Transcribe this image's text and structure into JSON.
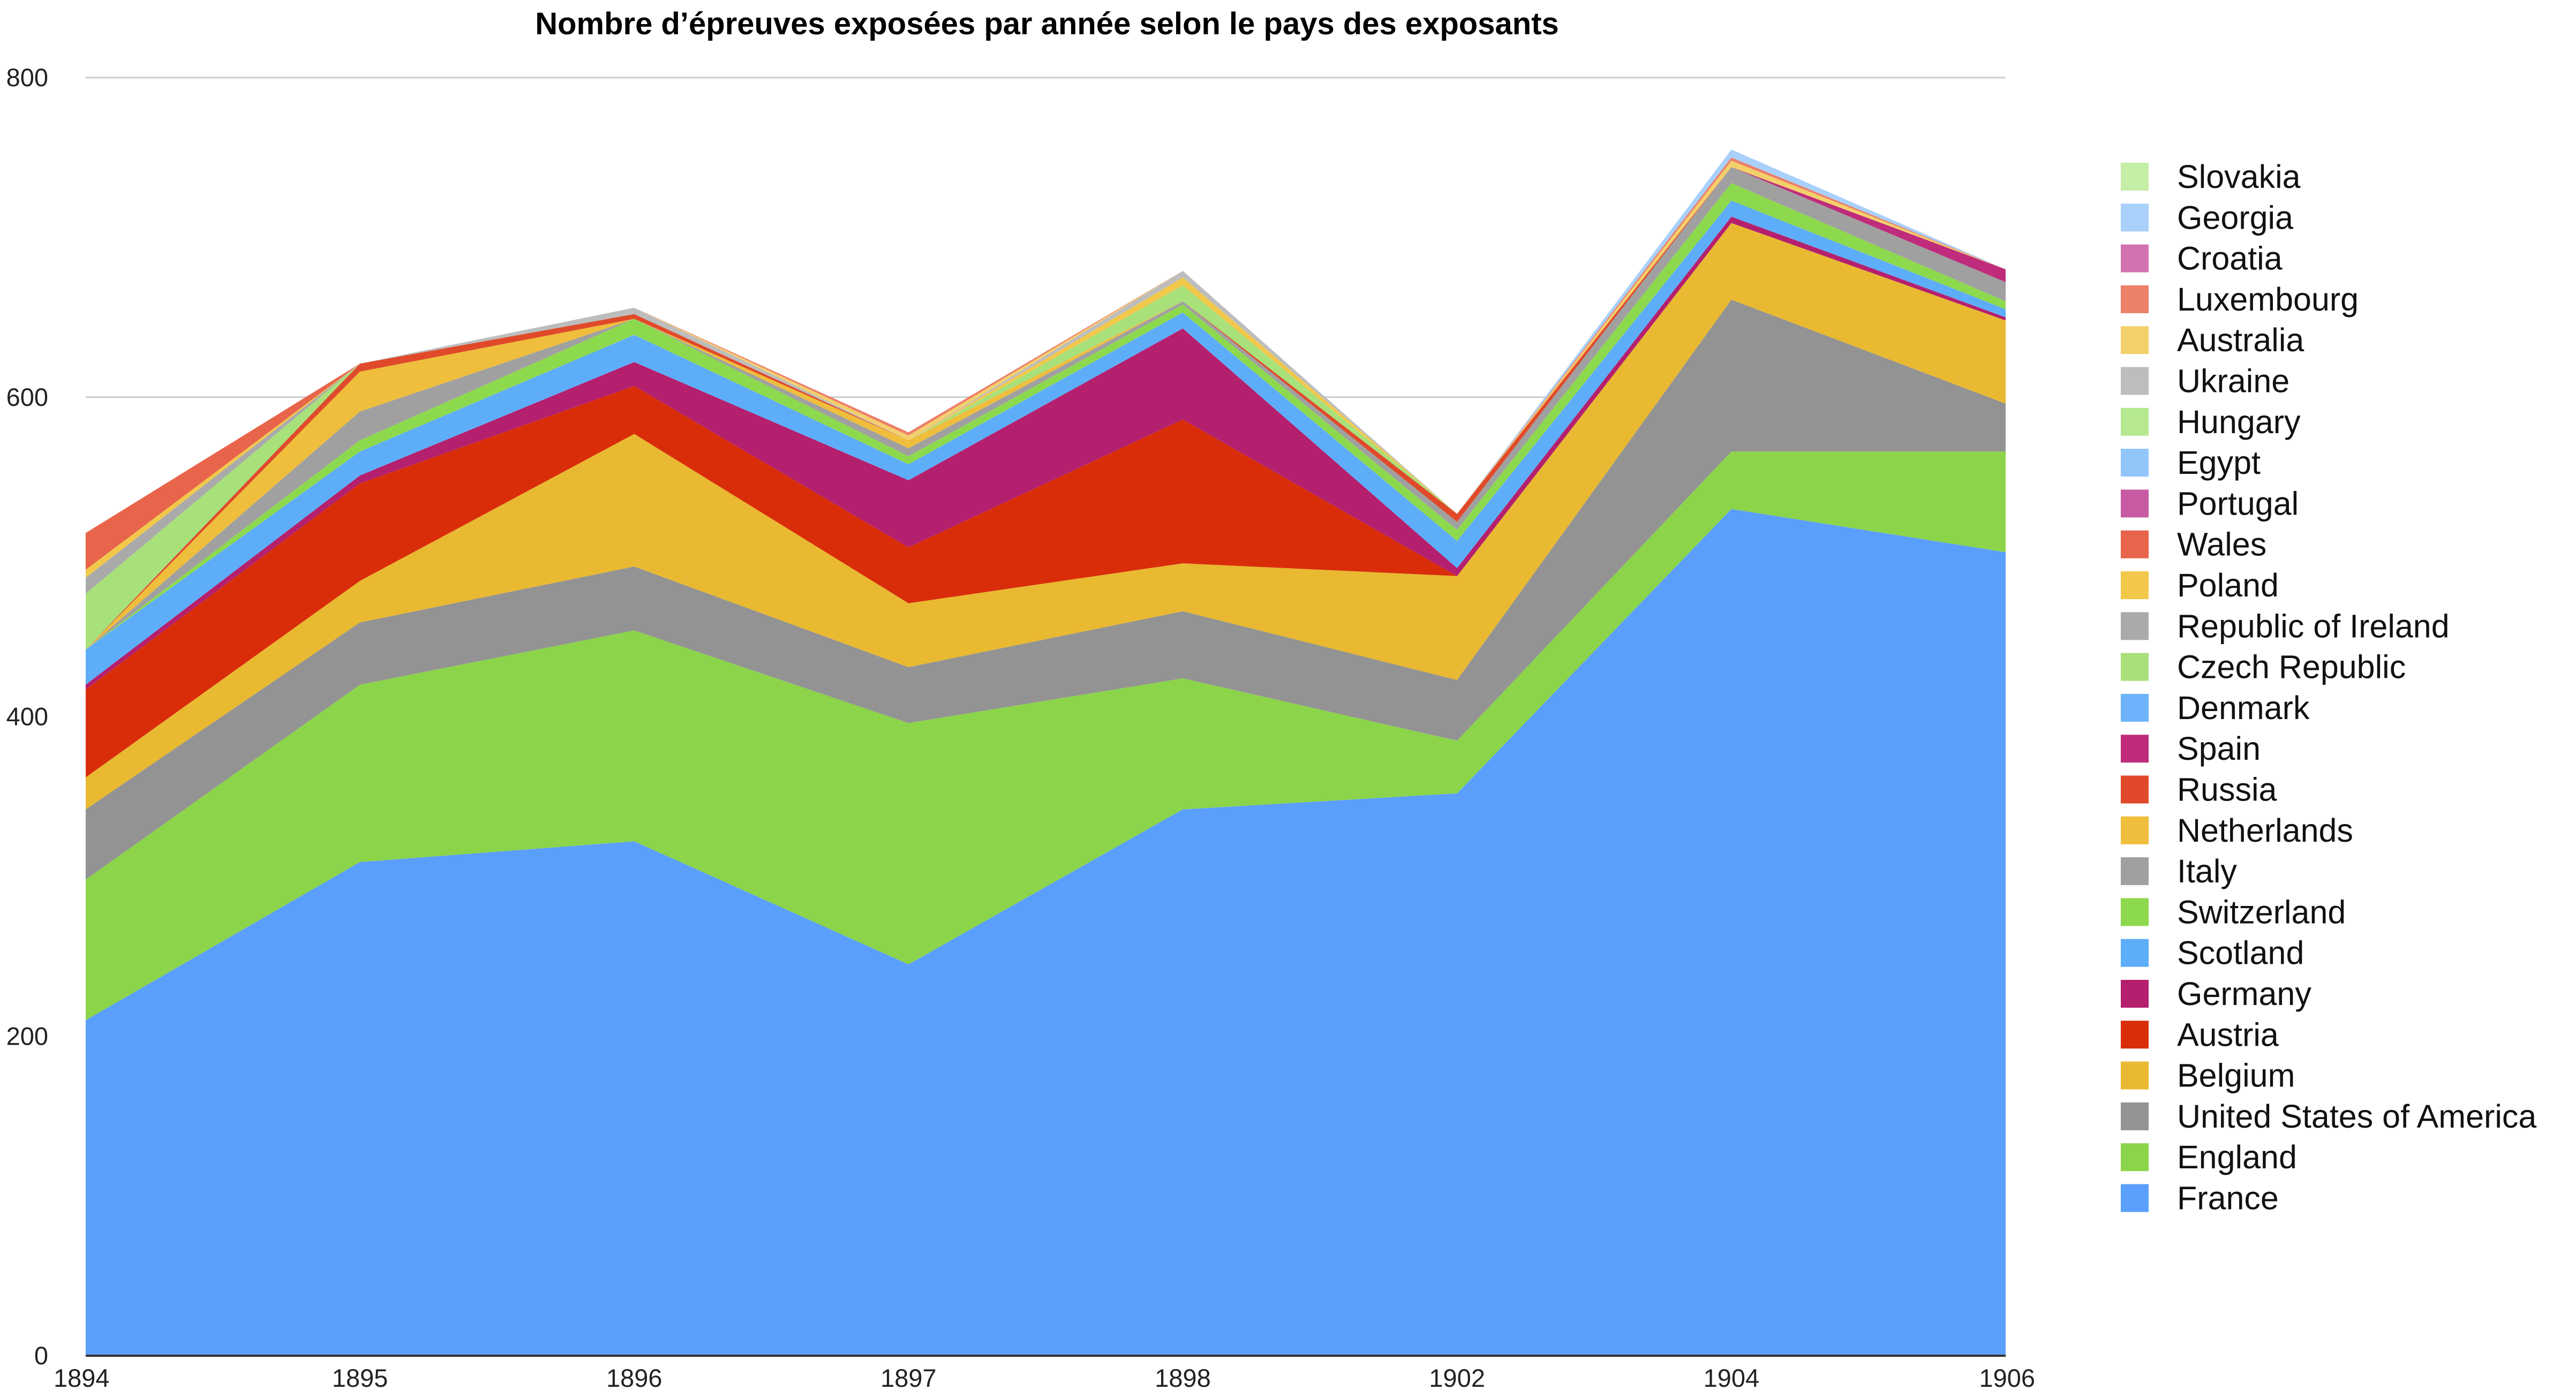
{
  "chart_data": {
    "type": "area",
    "stacked": true,
    "title": "Nombre d’épreuves exposées par année selon le pays des exposants",
    "xlabel": "",
    "ylabel": "",
    "categories": [
      "1894",
      "1895",
      "1896",
      "1897",
      "1898",
      "1902",
      "1904",
      "1906"
    ],
    "ylim": [
      0,
      800
    ],
    "yticks": [
      0,
      200,
      400,
      600,
      800
    ],
    "grid": true,
    "legend_position": "right",
    "series": [
      {
        "name": "France",
        "color": "#5B9FFC",
        "values": [
          210,
          309,
          322,
          245,
          342,
          352,
          530,
          503
        ]
      },
      {
        "name": "England",
        "color": "#8CD44A",
        "values": [
          88,
          111,
          132,
          151,
          82,
          33,
          36,
          63
        ]
      },
      {
        "name": "United States of America",
        "color": "#939393",
        "values": [
          44,
          39,
          40,
          35,
          42,
          38,
          95,
          30
        ]
      },
      {
        "name": "Belgium",
        "color": "#E9B931",
        "values": [
          20,
          26,
          83,
          40,
          30,
          65,
          48,
          52
        ]
      },
      {
        "name": "Austria",
        "color": "#D92D0A",
        "values": [
          55,
          61,
          30,
          35,
          90,
          0,
          0,
          0
        ]
      },
      {
        "name": "Germany",
        "color": "#B4206E",
        "values": [
          3,
          5,
          15,
          42,
          57,
          5,
          4,
          2
        ]
      },
      {
        "name": "Scotland",
        "color": "#5EADF9",
        "values": [
          22,
          15,
          17,
          10,
          10,
          17,
          10,
          5
        ]
      },
      {
        "name": "Switzerland",
        "color": "#8DD94E",
        "values": [
          0,
          7,
          10,
          5,
          5,
          7,
          11,
          5
        ]
      },
      {
        "name": "Italy",
        "color": "#A0A0A0",
        "values": [
          0,
          18,
          0,
          5,
          2,
          5,
          10,
          12
        ]
      },
      {
        "name": "Netherlands",
        "color": "#EFBE3C",
        "values": [
          0,
          25,
          0,
          5,
          0,
          0,
          0,
          0
        ]
      },
      {
        "name": "Russia",
        "color": "#E04A2A",
        "values": [
          0,
          5,
          3,
          0,
          0,
          5,
          0,
          0
        ]
      },
      {
        "name": "Spain",
        "color": "#BF2C7B",
        "values": [
          0,
          0,
          0,
          0,
          0,
          0,
          0,
          8
        ]
      },
      {
        "name": "Denmark",
        "color": "#6DB3FB",
        "values": [
          0,
          0,
          0,
          0,
          0,
          0,
          0,
          0
        ]
      },
      {
        "name": "Czech Republic",
        "color": "#A8E07A",
        "values": [
          35,
          0,
          0,
          0,
          10,
          0,
          0,
          0
        ]
      },
      {
        "name": "Republic of Ireland",
        "color": "#AAAAAA",
        "values": [
          10,
          0,
          0,
          0,
          0,
          0,
          0,
          0
        ]
      },
      {
        "name": "Poland",
        "color": "#F2C84B",
        "values": [
          5,
          0,
          0,
          0,
          5,
          0,
          0,
          0
        ]
      },
      {
        "name": "Wales",
        "color": "#E8644A",
        "values": [
          23,
          0,
          0,
          0,
          0,
          0,
          0,
          0
        ]
      },
      {
        "name": "Portugal",
        "color": "#C85AA3",
        "values": [
          0,
          0,
          0,
          0,
          0,
          0,
          0,
          0
        ]
      },
      {
        "name": "Egypt",
        "color": "#92C6FB",
        "values": [
          0,
          0,
          0,
          0,
          0,
          0,
          0,
          0
        ]
      },
      {
        "name": "Hungary",
        "color": "#B5E88F",
        "values": [
          0,
          0,
          0,
          0,
          0,
          0,
          0,
          0
        ]
      },
      {
        "name": "Ukraine",
        "color": "#BDBDBD",
        "values": [
          0,
          0,
          4,
          0,
          4,
          0,
          0,
          0
        ]
      },
      {
        "name": "Australia",
        "color": "#F4D06B",
        "values": [
          0,
          0,
          0,
          3,
          0,
          0,
          4,
          0
        ]
      },
      {
        "name": "Luxembourg",
        "color": "#EC8068",
        "values": [
          0,
          0,
          0,
          2,
          0,
          0,
          2,
          0
        ]
      },
      {
        "name": "Croatia",
        "color": "#D273B0",
        "values": [
          0,
          0,
          0,
          0,
          0,
          0,
          0,
          0
        ]
      },
      {
        "name": "Georgia",
        "color": "#A8D0FB",
        "values": [
          0,
          0,
          0,
          0,
          0,
          0,
          5,
          0
        ]
      },
      {
        "name": "Slovakia",
        "color": "#C5EEA6",
        "values": [
          0,
          0,
          0,
          0,
          0,
          0,
          0,
          0
        ]
      }
    ]
  }
}
